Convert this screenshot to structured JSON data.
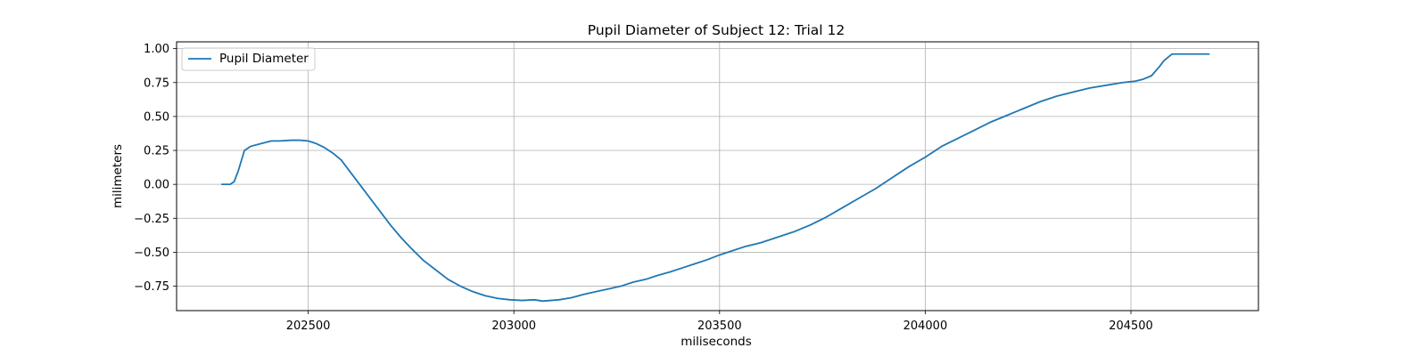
{
  "chart_data": {
    "type": "line",
    "title": "Pupil Diameter of Subject 12: Trial 12",
    "xlabel": "miliseconds",
    "ylabel": "milimeters",
    "xlim": [
      202180,
      204810
    ],
    "ylim": [
      -0.93,
      1.05
    ],
    "xticks": [
      202500,
      203000,
      203500,
      204000,
      204500
    ],
    "xtick_labels": [
      "202500",
      "203000",
      "203500",
      "204000",
      "204500"
    ],
    "yticks": [
      -0.75,
      -0.5,
      -0.25,
      0.0,
      0.25,
      0.5,
      0.75,
      1.0
    ],
    "ytick_labels": [
      "−0.75",
      "−0.50",
      "−0.25",
      "0.00",
      "0.25",
      "0.50",
      "0.75",
      "1.00"
    ],
    "grid": true,
    "legend_position": "upper-left",
    "series": [
      {
        "name": "Pupil Diameter",
        "color": "#1f77b4",
        "x": [
          202290,
          202310,
          202320,
          202330,
          202345,
          202360,
          202385,
          202410,
          202430,
          202460,
          202480,
          202500,
          202520,
          202540,
          202560,
          202580,
          202600,
          202625,
          202650,
          202675,
          202700,
          202725,
          202750,
          202780,
          202810,
          202840,
          202870,
          202900,
          202930,
          202960,
          202990,
          203020,
          203050,
          203070,
          203090,
          203110,
          203140,
          203170,
          203200,
          203230,
          203260,
          203290,
          203320,
          203350,
          203380,
          203410,
          203440,
          203470,
          203500,
          203530,
          203560,
          203600,
          203640,
          203680,
          203720,
          203760,
          203800,
          203840,
          203880,
          203920,
          203960,
          204000,
          204040,
          204080,
          204120,
          204160,
          204200,
          204240,
          204280,
          204320,
          204360,
          204400,
          204440,
          204480,
          204510,
          204530,
          204550,
          204570,
          204580,
          204600,
          204650,
          204690
        ],
        "y": [
          0.0,
          0.0,
          0.02,
          0.1,
          0.25,
          0.28,
          0.3,
          0.32,
          0.32,
          0.325,
          0.325,
          0.32,
          0.3,
          0.27,
          0.23,
          0.18,
          0.1,
          0.0,
          -0.1,
          -0.2,
          -0.3,
          -0.39,
          -0.47,
          -0.56,
          -0.63,
          -0.7,
          -0.75,
          -0.79,
          -0.82,
          -0.84,
          -0.85,
          -0.855,
          -0.85,
          -0.86,
          -0.855,
          -0.85,
          -0.835,
          -0.81,
          -0.79,
          -0.77,
          -0.75,
          -0.72,
          -0.7,
          -0.67,
          -0.645,
          -0.615,
          -0.585,
          -0.555,
          -0.52,
          -0.49,
          -0.46,
          -0.43,
          -0.39,
          -0.35,
          -0.3,
          -0.24,
          -0.17,
          -0.1,
          -0.03,
          0.05,
          0.13,
          0.2,
          0.28,
          0.34,
          0.4,
          0.46,
          0.51,
          0.56,
          0.61,
          0.65,
          0.68,
          0.71,
          0.73,
          0.75,
          0.76,
          0.775,
          0.8,
          0.87,
          0.91,
          0.96,
          0.96,
          0.96
        ]
      }
    ]
  }
}
